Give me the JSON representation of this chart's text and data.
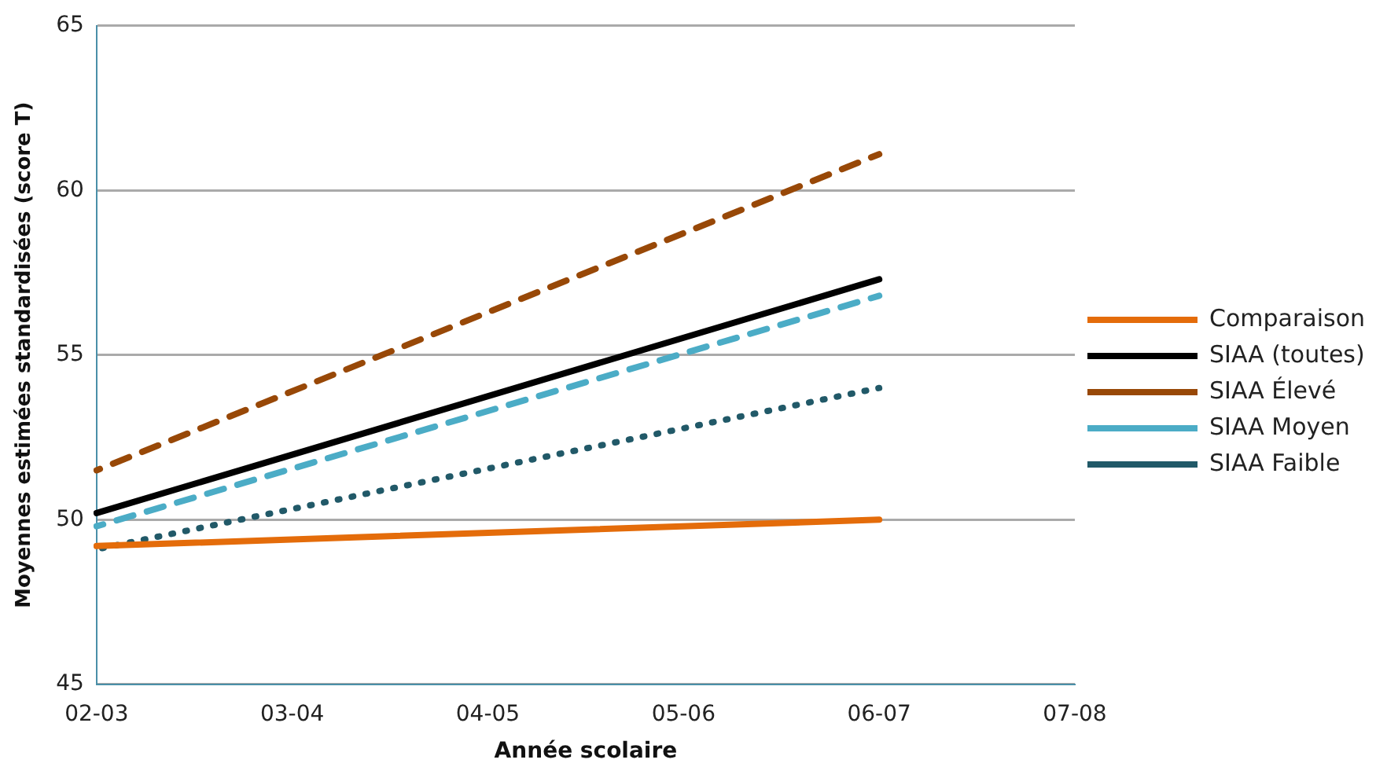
{
  "chart_data": {
    "type": "line",
    "xlabel": "Année scolaire",
    "ylabel": "Moyennes estimées standardisées (score T)",
    "categories": [
      "02-03",
      "03-04",
      "04-05",
      "05-06",
      "06-07",
      "07-08"
    ],
    "ylim": [
      45,
      65
    ],
    "yticks": [
      45,
      50,
      55,
      60,
      65
    ],
    "grid": "y",
    "legend": "right",
    "marker": "none",
    "series": [
      {
        "name": "Comparaison",
        "color": "#e46c0a",
        "line_style": "solid",
        "values": [
          49.2,
          null,
          null,
          null,
          50.0,
          null
        ]
      },
      {
        "name": "SIAA (toutes)",
        "color": "#000000",
        "line_style": "solid",
        "values": [
          50.2,
          null,
          null,
          null,
          57.3,
          null
        ]
      },
      {
        "name": "SIAA Élevé",
        "color": "#984807",
        "line_style": "dashed",
        "values": [
          51.5,
          null,
          null,
          null,
          61.1,
          null
        ]
      },
      {
        "name": "SIAA Moyen",
        "color": "#4bacc6",
        "line_style": "dashed",
        "values": [
          49.8,
          null,
          null,
          null,
          56.8,
          null
        ]
      },
      {
        "name": "SIAA Faible",
        "color": "#215968",
        "line_style": "dotted",
        "values": [
          49.1,
          null,
          null,
          null,
          54.0,
          null
        ]
      }
    ]
  }
}
